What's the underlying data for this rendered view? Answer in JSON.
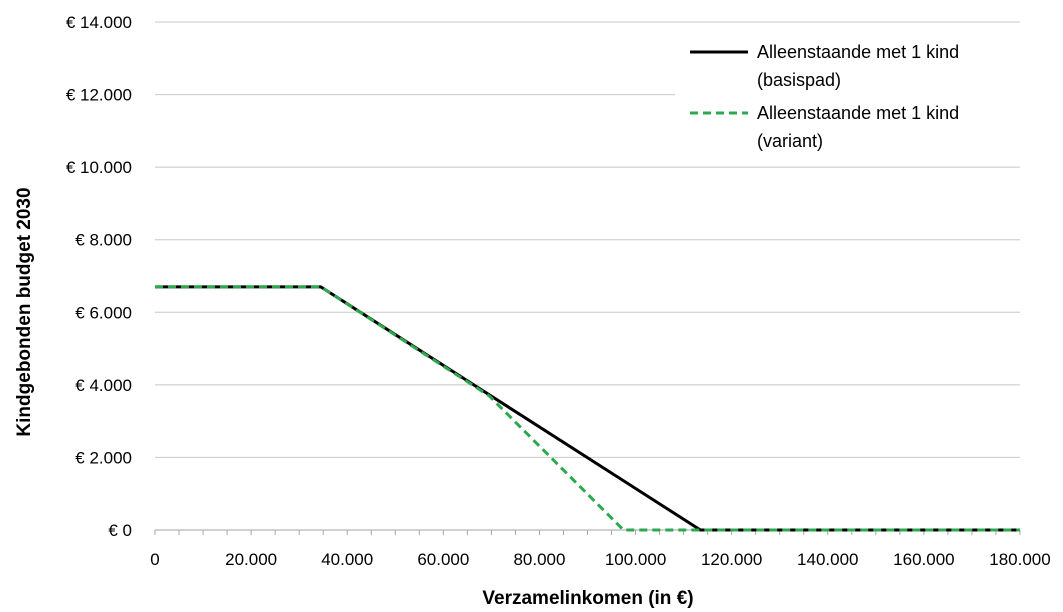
{
  "chart_data": {
    "type": "line",
    "xlabel": "Verzamelinkomen (in €)",
    "ylabel": "Kindgebonden budget 2030",
    "xlim": [
      0,
      180000
    ],
    "ylim": [
      0,
      14000
    ],
    "x_ticks": [
      0,
      20000,
      40000,
      60000,
      80000,
      100000,
      120000,
      140000,
      160000,
      180000
    ],
    "x_tick_labels": [
      "0",
      "20.000",
      "40.000",
      "60.000",
      "80.000",
      "100.000",
      "120.000",
      "140.000",
      "160.000",
      "180.000"
    ],
    "y_ticks": [
      0,
      2000,
      4000,
      6000,
      8000,
      10000,
      12000,
      14000
    ],
    "y_tick_labels": [
      "€ 0",
      "€ 2.000",
      "€ 4.000",
      "€ 6.000",
      "€ 8.000",
      "€ 10.000",
      "€ 12.000",
      "€ 14.000"
    ],
    "grid": "horizontal",
    "legend_position": "top-right",
    "series": [
      {
        "name": "Alleenstaande met 1 kind (basispad)",
        "legend_lines": [
          "Alleenstaande met 1 kind",
          "(basispad)"
        ],
        "color": "#000000",
        "style": "solid",
        "x": [
          0,
          34500,
          113500,
          180000
        ],
        "y": [
          6700,
          6700,
          0,
          0
        ]
      },
      {
        "name": "Alleenstaande met 1 kind (variant)",
        "legend_lines": [
          "Alleenstaande met 1 kind",
          "(variant)"
        ],
        "color": "#2ea84f",
        "style": "dashed",
        "x": [
          0,
          34500,
          69500,
          97500,
          180000
        ],
        "y": [
          6700,
          6700,
          3700,
          0,
          0
        ]
      }
    ]
  }
}
